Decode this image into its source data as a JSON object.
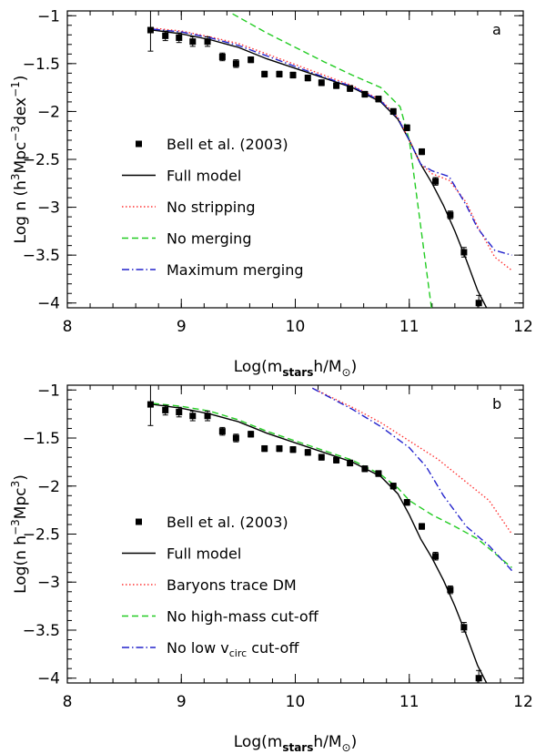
{
  "chart_data": [
    {
      "type": "line",
      "panel_label": "a",
      "title": "",
      "xlabel": "Log(m_stars h/M_⊙)",
      "xlabel_parts": {
        "pre": "Log(m",
        "sub": "stars",
        "post": "h/M",
        "post_sub": "⊙",
        "close": ")"
      },
      "ylabel": "Log n (h^3Mpc^-3dex^-1)",
      "ylabel_parts": {
        "a": "Log n  (h",
        "sup1": "3",
        "b": "Mpc",
        "sup2": "−3",
        "c": "dex",
        "sup3": "−1",
        "d": ")"
      },
      "xlim": [
        8,
        12
      ],
      "ylim": [
        -4.05,
        -0.95
      ],
      "x_ticks": [
        8,
        9,
        10,
        11,
        12
      ],
      "x_tick_labels": [
        "8",
        "9",
        "10",
        "11",
        "12"
      ],
      "y_ticks": [
        -1,
        -1.5,
        -2,
        -2.5,
        -3,
        -3.5,
        -4
      ],
      "y_tick_labels": [
        "−1",
        "−1.5",
        "−2",
        "−2.5",
        "−3",
        "−3.5",
        "−4"
      ],
      "observations": {
        "name": "Bell et al. (2003)",
        "x": [
          8.73,
          8.86,
          8.98,
          9.1,
          9.23,
          9.36,
          9.48,
          9.61,
          9.73,
          9.86,
          9.98,
          10.11,
          10.23,
          10.36,
          10.48,
          10.61,
          10.73,
          10.86,
          10.98,
          11.11,
          11.23,
          11.36,
          11.48,
          11.61
        ],
        "y": [
          -1.15,
          -1.21,
          -1.23,
          -1.27,
          -1.27,
          -1.43,
          -1.5,
          -1.46,
          -1.61,
          -1.61,
          -1.62,
          -1.65,
          -1.7,
          -1.73,
          -1.76,
          -1.82,
          -1.87,
          -2.0,
          -2.17,
          -2.42,
          -2.73,
          -3.08,
          -3.47,
          -4.0
        ],
        "yerr": [
          0.22,
          0.05,
          0.05,
          0.05,
          0.05,
          0.04,
          0.04,
          0.03,
          0.03,
          0.03,
          0.03,
          0.03,
          0.03,
          0.03,
          0.03,
          0.03,
          0.03,
          0.03,
          0.03,
          0.03,
          0.04,
          0.04,
          0.05,
          0.08
        ]
      },
      "series": [
        {
          "name": "Full model",
          "color": "#000000",
          "dash": "solid",
          "x": [
            8.75,
            9.0,
            9.25,
            9.5,
            9.75,
            10.0,
            10.25,
            10.5,
            10.75,
            10.9,
            11.0,
            11.1,
            11.2,
            11.3,
            11.4,
            11.5,
            11.6,
            11.7
          ],
          "y": [
            -1.15,
            -1.19,
            -1.25,
            -1.33,
            -1.45,
            -1.55,
            -1.65,
            -1.75,
            -1.9,
            -2.08,
            -2.3,
            -2.55,
            -2.75,
            -2.98,
            -3.25,
            -3.55,
            -3.87,
            -4.1
          ]
        },
        {
          "name": "No stripping",
          "color": "#ff3333",
          "dash": "dotted",
          "x": [
            8.75,
            9.0,
            9.25,
            9.5,
            9.75,
            10.0,
            10.25,
            10.5,
            10.75,
            10.9,
            11.0,
            11.1,
            11.2,
            11.35,
            11.5,
            11.6,
            11.75,
            11.9
          ],
          "y": [
            -1.13,
            -1.16,
            -1.22,
            -1.29,
            -1.4,
            -1.51,
            -1.62,
            -1.73,
            -1.88,
            -2.06,
            -2.3,
            -2.55,
            -2.65,
            -2.72,
            -2.95,
            -3.2,
            -3.52,
            -3.66
          ]
        },
        {
          "name": "No merging",
          "color": "#22cc22",
          "dash": "dashed",
          "x": [
            9.45,
            9.75,
            10.0,
            10.25,
            10.5,
            10.75,
            10.92,
            11.0,
            11.1,
            11.2
          ],
          "y": [
            -0.98,
            -1.18,
            -1.33,
            -1.48,
            -1.62,
            -1.75,
            -1.95,
            -2.3,
            -3.2,
            -4.1
          ]
        },
        {
          "name": "Maximum merging",
          "color": "#2222cc",
          "dash": "dashdot",
          "x": [
            8.75,
            9.0,
            9.25,
            9.5,
            9.75,
            10.0,
            10.25,
            10.5,
            10.75,
            10.9,
            11.0,
            11.1,
            11.2,
            11.35,
            11.5,
            11.6,
            11.75,
            11.9
          ],
          "y": [
            -1.14,
            -1.17,
            -1.23,
            -1.31,
            -1.42,
            -1.53,
            -1.64,
            -1.74,
            -1.89,
            -2.07,
            -2.3,
            -2.55,
            -2.62,
            -2.68,
            -2.98,
            -3.22,
            -3.45,
            -3.5
          ]
        }
      ],
      "legend_position": "lower-left"
    },
    {
      "type": "line",
      "panel_label": "b",
      "title": "",
      "xlabel": "Log(m_stars h/M_⊙)",
      "xlabel_parts": {
        "pre": "Log(m",
        "sub": "stars",
        "post": "h/M",
        "post_sub": "⊙",
        "close": ")"
      },
      "ylabel": "Log(n h^-3Mpc^3)",
      "ylabel_parts": {
        "a": "Log(n  h",
        "sup1": "−3",
        "b": "Mpc",
        "sup2": "3",
        "c": ")"
      },
      "xlim": [
        8,
        12
      ],
      "ylim": [
        -4.05,
        -0.95
      ],
      "x_ticks": [
        8,
        9,
        10,
        11,
        12
      ],
      "x_tick_labels": [
        "8",
        "9",
        "10",
        "11",
        "12"
      ],
      "y_ticks": [
        -1,
        -1.5,
        -2,
        -2.5,
        -3,
        -3.5,
        -4
      ],
      "y_tick_labels": [
        "−1",
        "−1.5",
        "−2",
        "−2.5",
        "−3",
        "−3.5",
        "−4"
      ],
      "observations": {
        "name": "Bell et al. (2003)",
        "x": [
          8.73,
          8.86,
          8.98,
          9.1,
          9.23,
          9.36,
          9.48,
          9.61,
          9.73,
          9.86,
          9.98,
          10.11,
          10.23,
          10.36,
          10.48,
          10.61,
          10.73,
          10.86,
          10.98,
          11.11,
          11.23,
          11.36,
          11.48,
          11.61
        ],
        "y": [
          -1.15,
          -1.21,
          -1.23,
          -1.27,
          -1.27,
          -1.43,
          -1.5,
          -1.46,
          -1.61,
          -1.61,
          -1.62,
          -1.65,
          -1.7,
          -1.73,
          -1.76,
          -1.82,
          -1.87,
          -2.0,
          -2.17,
          -2.42,
          -2.73,
          -3.08,
          -3.47,
          -4.0
        ],
        "yerr": [
          0.22,
          0.05,
          0.05,
          0.05,
          0.05,
          0.04,
          0.04,
          0.03,
          0.03,
          0.03,
          0.03,
          0.03,
          0.03,
          0.03,
          0.03,
          0.03,
          0.03,
          0.03,
          0.03,
          0.03,
          0.04,
          0.04,
          0.05,
          0.08
        ]
      },
      "series": [
        {
          "name": "Full model",
          "color": "#000000",
          "dash": "solid",
          "x": [
            8.75,
            9.0,
            9.25,
            9.5,
            9.75,
            10.0,
            10.25,
            10.5,
            10.75,
            10.9,
            11.0,
            11.1,
            11.2,
            11.3,
            11.4,
            11.5,
            11.6,
            11.7
          ],
          "y": [
            -1.15,
            -1.19,
            -1.25,
            -1.33,
            -1.45,
            -1.55,
            -1.65,
            -1.75,
            -1.9,
            -2.08,
            -2.3,
            -2.55,
            -2.75,
            -2.98,
            -3.25,
            -3.55,
            -3.87,
            -4.1
          ]
        },
        {
          "name": "Baryons trace DM",
          "color": "#ff3333",
          "dash": "dotted",
          "x": [
            10.15,
            10.5,
            10.75,
            11.0,
            11.25,
            11.5,
            11.7,
            11.9
          ],
          "y": [
            -0.98,
            -1.18,
            -1.34,
            -1.53,
            -1.72,
            -1.96,
            -2.15,
            -2.5
          ]
        },
        {
          "name": "No high-mass cut-off",
          "color": "#22cc22",
          "dash": "dashed",
          "x": [
            8.75,
            9.0,
            9.25,
            9.5,
            9.75,
            10.0,
            10.25,
            10.5,
            10.75,
            10.9,
            11.0,
            11.2,
            11.4,
            11.6,
            11.9
          ],
          "y": [
            -1.14,
            -1.17,
            -1.22,
            -1.31,
            -1.43,
            -1.53,
            -1.63,
            -1.73,
            -1.88,
            -2.02,
            -2.15,
            -2.3,
            -2.42,
            -2.55,
            -2.85
          ]
        },
        {
          "name": "No low v_circ cut-off",
          "color": "#2222cc",
          "dash": "dashdot",
          "x": [
            10.15,
            10.5,
            10.75,
            11.0,
            11.15,
            11.3,
            11.5,
            11.7,
            11.9
          ],
          "y": [
            -0.98,
            -1.2,
            -1.38,
            -1.6,
            -1.8,
            -2.1,
            -2.42,
            -2.62,
            -2.88
          ]
        }
      ],
      "legend_labels_rich": [
        "Bell et al. (2003)",
        "Full model",
        "Baryons trace DM",
        "No high-mass cut-off",
        "No low v",
        "circ",
        " cut-off"
      ],
      "legend_position": "lower-left"
    }
  ]
}
